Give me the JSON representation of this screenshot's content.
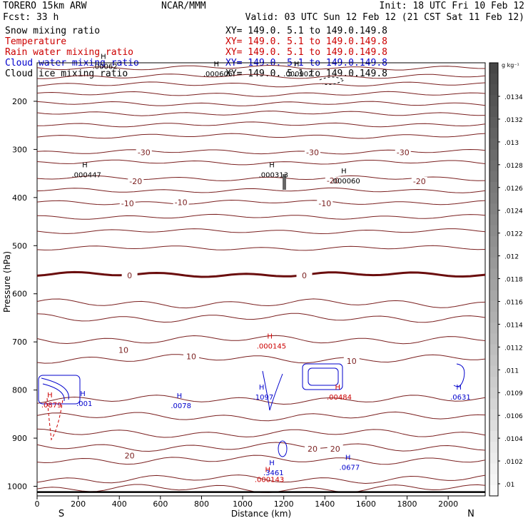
{
  "header": {
    "model": "TORERO  15km ARW",
    "org": "NCAR/MMM",
    "init": "Init: 18 UTC Fri 10 Feb 12",
    "fcst": "Fcst:   33 h",
    "valid": "Valid: 03 UTC Sun 12 Feb 12 (21 CST Sat 11 Feb 12)"
  },
  "legend": [
    {
      "label": "Snow mixing ratio",
      "color": "#000000",
      "xy": "XY= 149.0.  5.1 to 149.0.149.8"
    },
    {
      "label": "Temperature",
      "color": "#cc0000",
      "xy": "XY= 149.0.  5.1 to 149.0.149.8"
    },
    {
      "label": "Rain water mixing ratio",
      "color": "#cc0000",
      "xy": "XY= 149.0.  5.1 to 149.0.149.8"
    },
    {
      "label": "Cloud water mixing ratio",
      "color": "#0000cc",
      "xy": "XY= 149.0.  5.1 to 149.0.149.8"
    },
    {
      "label": "Cloud ice mixing ratio",
      "color": "#000000",
      "xy": "XY= 149.0.  5.1 to 149.0.149.8"
    }
  ],
  "colors": {
    "temp": "#7a1f1f",
    "temp_zero": "#6a0d0d",
    "rain": "#cc0000",
    "cloud": "#0000cc",
    "text": "#000000"
  },
  "chart_data": {
    "type": "contour",
    "xlabel": "Distance (km)",
    "ylabel": "Pressure (hPa)",
    "xlim": [
      0,
      2180
    ],
    "ylim": [
      120,
      1020
    ],
    "x_ticks": [
      0,
      200,
      400,
      600,
      800,
      1000,
      1200,
      1400,
      1600,
      1800,
      2000
    ],
    "y_ticks": [
      200,
      300,
      400,
      500,
      600,
      700,
      800,
      900,
      1000
    ],
    "x_end_left": "S",
    "x_end_right": "N",
    "temperature_contours": [
      {
        "p": 130,
        "label": ""
      },
      {
        "p": 148,
        "label": ""
      },
      {
        "p": 165,
        "label": ""
      },
      {
        "p": 185,
        "label": ""
      },
      {
        "p": 205,
        "label": ""
      },
      {
        "p": 225,
        "label": ""
      },
      {
        "p": 248,
        "label": ""
      },
      {
        "p": 272,
        "label": ""
      },
      {
        "p": 305,
        "label": "-30"
      },
      {
        "p": 327,
        "label": ""
      },
      {
        "p": 360,
        "label": "-20"
      },
      {
        "p": 385,
        "label": ""
      },
      {
        "p": 410,
        "label": "-10"
      },
      {
        "p": 440,
        "label": ""
      },
      {
        "p": 470,
        "label": ""
      },
      {
        "p": 505,
        "label": ""
      },
      {
        "p": 560,
        "label": "0"
      },
      {
        "p": 620,
        "label": ""
      },
      {
        "p": 650,
        "label": ""
      },
      {
        "p": 695,
        "label": ""
      },
      {
        "p": 735,
        "label": "10"
      },
      {
        "p": 820,
        "label": ""
      },
      {
        "p": 855,
        "label": ""
      },
      {
        "p": 890,
        "label": ""
      },
      {
        "p": 918,
        "label": ""
      },
      {
        "p": 945,
        "label": "20"
      },
      {
        "p": 985,
        "label": ""
      },
      {
        "p": 1005,
        "label": ""
      }
    ],
    "temperature_labels": [
      {
        "x": 520,
        "p": 306,
        "text": "-30"
      },
      {
        "x": 1340,
        "p": 306,
        "text": "-30"
      },
      {
        "x": 1780,
        "p": 306,
        "text": "-30"
      },
      {
        "x": 480,
        "p": 366,
        "text": "-20"
      },
      {
        "x": 1440,
        "p": 365,
        "text": "-20"
      },
      {
        "x": 1860,
        "p": 366,
        "text": "-20"
      },
      {
        "x": 440,
        "p": 412,
        "text": "-10"
      },
      {
        "x": 700,
        "p": 410,
        "text": "-10"
      },
      {
        "x": 1400,
        "p": 412,
        "text": "-10"
      },
      {
        "x": 450,
        "p": 562,
        "text": "0"
      },
      {
        "x": 1300,
        "p": 562,
        "text": "0"
      },
      {
        "x": 420,
        "p": 717,
        "text": "10"
      },
      {
        "x": 750,
        "p": 730,
        "text": "10"
      },
      {
        "x": 1530,
        "p": 740,
        "text": "10"
      },
      {
        "x": 450,
        "p": 936,
        "text": "20"
      },
      {
        "x": 1340,
        "p": 922,
        "text": "20"
      },
      {
        "x": 1450,
        "p": 922,
        "text": "20"
      }
    ],
    "maxima": [
      {
        "x": 240,
        "p": 352,
        "text": ".000447",
        "color": "#000000"
      },
      {
        "x": 1150,
        "p": 352,
        "text": ".000313",
        "color": "#000000"
      },
      {
        "x": 1500,
        "p": 365,
        "text": ".000060",
        "color": "#000000"
      },
      {
        "x": 1140,
        "p": 708,
        "text": ".000145",
        "color": "#cc0000"
      },
      {
        "x": 700,
        "p": 832,
        "text": ".0078",
        "color": "#0000cc"
      },
      {
        "x": 1100,
        "p": 814,
        "text": ".1097",
        "color": "#0000cc"
      },
      {
        "x": 1470,
        "p": 814,
        "text": ".00484",
        "color": "#cc0000"
      },
      {
        "x": 2060,
        "p": 814,
        "text": ".0631",
        "color": "#0000cc"
      },
      {
        "x": 70,
        "p": 830,
        "text": ".0879",
        "color": "#cc0000"
      },
      {
        "x": 230,
        "p": 827,
        "text": ".001",
        "color": "#0000cc"
      },
      {
        "x": 1130,
        "p": 985,
        "text": ".000143",
        "color": "#cc0000"
      },
      {
        "x": 1150,
        "p": 971,
        "text": ".3461",
        "color": "#0000cc"
      },
      {
        "x": 1520,
        "p": 960,
        "text": ".0677",
        "color": "#0000cc"
      },
      {
        "x": 880,
        "p": 142,
        "text": ".000606",
        "color": "#000000"
      },
      {
        "x": 1270,
        "p": 142,
        "text": ".000902",
        "color": "#000000"
      },
      {
        "x": 330,
        "p": 127,
        "text": ".00062",
        "color": "#000000"
      }
    ],
    "colorbar": {
      "unit": "g kg⁻¹",
      "ticks": [
        ".0134",
        ".0132",
        ".013",
        ".0128",
        ".0126",
        ".0124",
        ".0122",
        ".012",
        ".0118",
        ".0116",
        ".0114",
        ".0112",
        ".011",
        ".0109",
        ".0106",
        ".0104",
        ".0102",
        ".01"
      ]
    }
  }
}
